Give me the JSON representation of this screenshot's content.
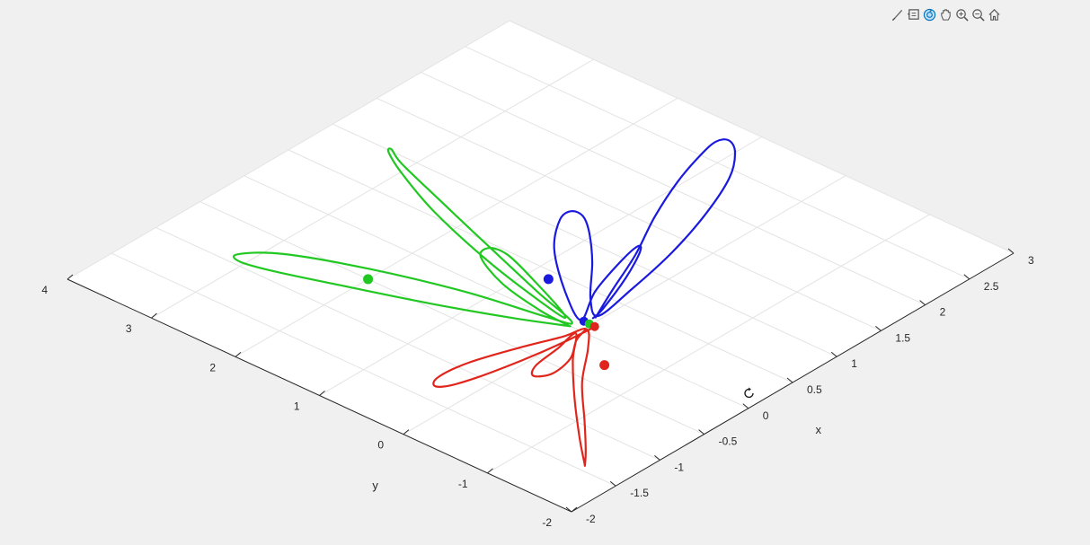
{
  "toolbar": {
    "icons": [
      "brush-icon",
      "datatip-icon",
      "rotate-3d-icon",
      "pan-icon",
      "zoom-in-icon",
      "zoom-out-icon",
      "home-icon"
    ],
    "active": "rotate-3d-icon",
    "accent": "#0072bd"
  },
  "chart_data": {
    "type": "line",
    "dimensions": "3d",
    "title": "",
    "xlabel": "x",
    "ylabel": "y",
    "xlim": [
      -2,
      3
    ],
    "ylim": [
      -2,
      4
    ],
    "grid": true,
    "x_ticks": [
      "-2",
      "-1.5",
      "-1",
      "-0.5",
      "0",
      "0.5",
      "1",
      "1.5",
      "2",
      "2.5",
      "3"
    ],
    "y_ticks": [
      "-2",
      "-1",
      "0",
      "1",
      "2",
      "3",
      "4"
    ],
    "series": [
      {
        "color": "#1a1adf",
        "marker": [
          0.4,
          0.8
        ],
        "points": [
          [
            0.22,
            0.05
          ],
          [
            0.6,
            0.25
          ],
          [
            1.1,
            0.5
          ],
          [
            1.6,
            0.8
          ],
          [
            2.1,
            1.05
          ],
          [
            2.5,
            1.2
          ],
          [
            2.72,
            1.25
          ],
          [
            2.8,
            1.18
          ],
          [
            2.7,
            1.0
          ],
          [
            2.4,
            0.75
          ],
          [
            1.9,
            0.5
          ],
          [
            1.3,
            0.28
          ],
          [
            0.7,
            0.13
          ],
          [
            0.25,
            0.05
          ],
          [
            0.4,
            0.3
          ],
          [
            0.8,
            0.7
          ],
          [
            1.1,
            1.05
          ],
          [
            1.25,
            1.28
          ],
          [
            1.25,
            1.42
          ],
          [
            1.1,
            1.4
          ],
          [
            0.75,
            1.1
          ],
          [
            0.35,
            0.55
          ],
          [
            0.12,
            0.12
          ],
          [
            0.5,
            0.35
          ],
          [
            0.95,
            0.52
          ],
          [
            1.2,
            0.58
          ],
          [
            1.15,
            0.5
          ],
          [
            0.8,
            0.3
          ],
          [
            0.35,
            0.1
          ],
          [
            0.2,
            0.06
          ]
        ]
      },
      {
        "color": "#22c822",
        "marker": [
          -0.5,
          2.0
        ],
        "points": [
          [
            0.0,
            0.12
          ],
          [
            -0.2,
            0.6
          ],
          [
            -0.45,
            1.3
          ],
          [
            -0.7,
            2.1
          ],
          [
            -0.88,
            2.7
          ],
          [
            -0.95,
            3.05
          ],
          [
            -0.88,
            3.15
          ],
          [
            -0.65,
            2.85
          ],
          [
            -0.38,
            2.1
          ],
          [
            -0.15,
            1.2
          ],
          [
            -0.02,
            0.4
          ],
          [
            0.05,
            0.15
          ],
          [
            0.2,
            0.7
          ],
          [
            0.45,
            1.55
          ],
          [
            0.72,
            2.45
          ],
          [
            0.92,
            3.1
          ],
          [
            1.02,
            3.32
          ],
          [
            0.97,
            3.3
          ],
          [
            0.8,
            2.95
          ],
          [
            0.55,
            2.3
          ],
          [
            0.28,
            1.35
          ],
          [
            0.08,
            0.4
          ],
          [
            0.1,
            0.3
          ],
          [
            0.32,
            0.9
          ],
          [
            0.46,
            1.35
          ],
          [
            0.44,
            1.55
          ],
          [
            0.3,
            1.5
          ],
          [
            0.12,
            1.05
          ],
          [
            0.02,
            0.5
          ],
          [
            0.0,
            0.15
          ]
        ]
      },
      {
        "color": "#e0261c",
        "marker": [
          -0.25,
          -0.55
        ],
        "points": [
          [
            0.1,
            -0.05
          ],
          [
            -0.2,
            -0.02
          ],
          [
            -0.6,
            0.05
          ],
          [
            -1.0,
            0.15
          ],
          [
            -1.25,
            0.25
          ],
          [
            -1.32,
            0.35
          ],
          [
            -1.2,
            0.42
          ],
          [
            -0.9,
            0.38
          ],
          [
            -0.5,
            0.22
          ],
          [
            -0.15,
            0.05
          ],
          [
            0.05,
            -0.02
          ],
          [
            -0.15,
            -0.25
          ],
          [
            -0.55,
            -0.6
          ],
          [
            -0.95,
            -1.05
          ],
          [
            -1.25,
            -1.38
          ],
          [
            -1.42,
            -1.55
          ],
          [
            -1.4,
            -1.52
          ],
          [
            -1.15,
            -1.2
          ],
          [
            -0.75,
            -0.72
          ],
          [
            -0.35,
            -0.28
          ],
          [
            -0.05,
            0.0
          ],
          [
            -0.3,
            -0.05
          ],
          [
            -0.6,
            -0.1
          ],
          [
            -0.72,
            -0.2
          ],
          [
            -0.6,
            -0.3
          ],
          [
            -0.35,
            -0.25
          ],
          [
            -0.12,
            -0.08
          ],
          [
            0.05,
            -0.02
          ]
        ]
      }
    ]
  }
}
